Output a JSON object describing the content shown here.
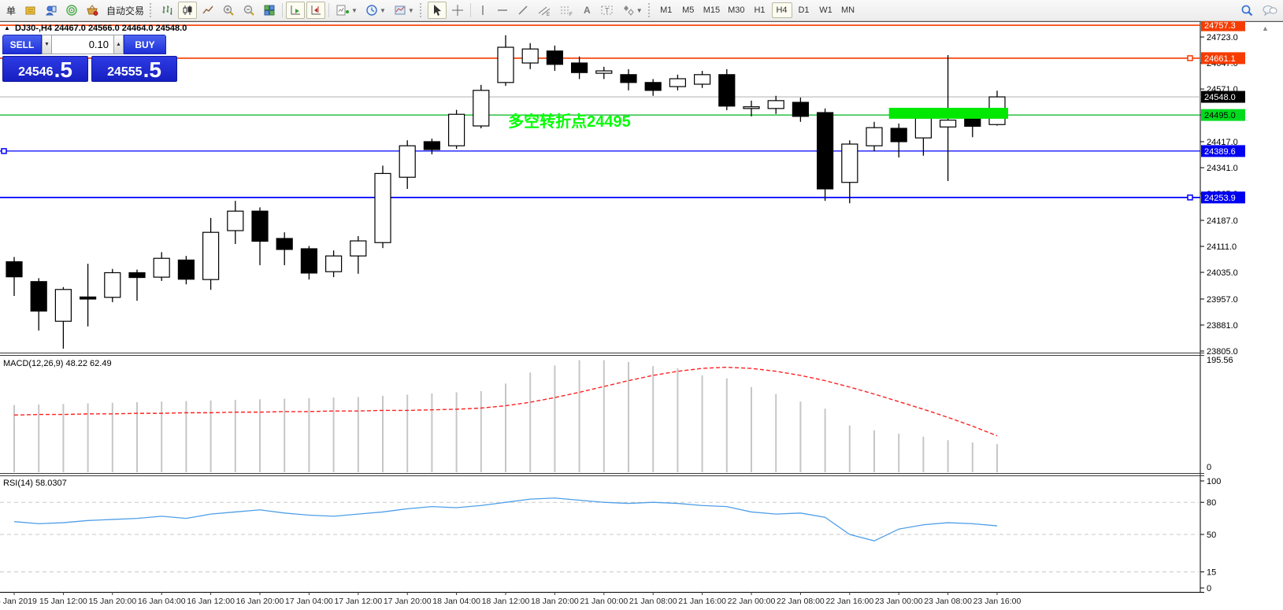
{
  "toolbar": {
    "order_label": "单",
    "autotrade_label": "自动交易",
    "timeframes": [
      "M1",
      "M5",
      "M15",
      "M30",
      "H1",
      "H4",
      "D1",
      "W1",
      "MN"
    ],
    "active_timeframe": "H4"
  },
  "trade_panel": {
    "sell_label": "SELL",
    "buy_label": "BUY",
    "volume": "0.10",
    "sell_price_main": "24546",
    "sell_price_big": ".5",
    "buy_price_main": "24555",
    "buy_price_big": ".5"
  },
  "chart_header": {
    "marker": "▲",
    "symbol": "DJ30-,H4",
    "ohlc": "24467.0 24566.0 24464.0 24548.0"
  },
  "indicator_labels": {
    "macd": "MACD(12,26,9) 48.22 62.49",
    "rsi": "RSI(14) 58.0307"
  },
  "chart_data": {
    "type": "candlestick",
    "symbol": "DJ30-",
    "timeframe": "H4",
    "columns": [
      "time",
      "open",
      "high",
      "low",
      "close"
    ],
    "candles": [
      [
        "15 Jan 04:00",
        24066,
        24080,
        23966,
        24022
      ],
      [
        "15 Jan 08:00",
        24008,
        24018,
        23865,
        23922
      ],
      [
        "15 Jan 12:00",
        23892,
        23992,
        23812,
        23985
      ],
      [
        "15 Jan 16:00",
        23963,
        24060,
        23877,
        23957
      ],
      [
        "15 Jan 20:00",
        23962,
        24045,
        23948,
        24034
      ],
      [
        "16 Jan 00:00",
        24034,
        24043,
        23952,
        24020
      ],
      [
        "16 Jan 04:00",
        24021,
        24094,
        24010,
        24076
      ],
      [
        "16 Jan 08:00",
        24071,
        24083,
        24000,
        24015
      ],
      [
        "16 Jan 12:00",
        24014,
        24194,
        23984,
        24152
      ],
      [
        "16 Jan 16:00",
        24157,
        24244,
        24118,
        24214
      ],
      [
        "16 Jan 20:00",
        24214,
        24225,
        24056,
        24126
      ],
      [
        "17 Jan 00:00",
        24134,
        24152,
        24056,
        24102
      ],
      [
        "17 Jan 04:00",
        24104,
        24112,
        24014,
        24033
      ],
      [
        "17 Jan 08:00",
        24037,
        24099,
        24021,
        24083
      ],
      [
        "17 Jan 12:00",
        24083,
        24141,
        24031,
        24127
      ],
      [
        "17 Jan 16:00",
        24122,
        24347,
        24106,
        24324
      ],
      [
        "17 Jan 20:00",
        24313,
        24421,
        24279,
        24405
      ],
      [
        "18 Jan 00:00",
        24417,
        24426,
        24380,
        24394
      ],
      [
        "18 Jan 04:00",
        24405,
        24510,
        24396,
        24497
      ],
      [
        "18 Jan 08:00",
        24463,
        24583,
        24456,
        24567
      ],
      [
        "18 Jan 12:00",
        24590,
        24728,
        24580,
        24693
      ],
      [
        "18 Jan 16:00",
        24647,
        24705,
        24629,
        24688
      ],
      [
        "18 Jan 20:00",
        24682,
        24698,
        24624,
        24643
      ],
      [
        "19 Jan 00:00",
        24647,
        24666,
        24600,
        24619
      ],
      [
        "21 Jan 00:00",
        24617,
        24636,
        24600,
        24624
      ],
      [
        "21 Jan 04:00",
        24613,
        24629,
        24567,
        24590
      ],
      [
        "21 Jan 08:00",
        24590,
        24600,
        24551,
        24567
      ],
      [
        "21 Jan 12:00",
        24578,
        24613,
        24567,
        24601
      ],
      [
        "21 Jan 16:00",
        24585,
        24624,
        24574,
        24613
      ],
      [
        "21 Jan 20:00",
        24613,
        24629,
        24509,
        24521
      ],
      [
        "22 Jan 00:00",
        24514,
        24537,
        24491,
        24519
      ],
      [
        "22 Jan 04:00",
        24514,
        24551,
        24498,
        24537
      ],
      [
        "22 Jan 08:00",
        24532,
        24546,
        24475,
        24491
      ],
      [
        "22 Jan 12:00",
        24502,
        24514,
        24244,
        24279
      ],
      [
        "22 Jan 16:00",
        24298,
        24421,
        24237,
        24410
      ],
      [
        "22 Jan 20:00",
        24405,
        24475,
        24389,
        24458
      ],
      [
        "23 Jan 00:00",
        24456,
        24470,
        24371,
        24417
      ],
      [
        "23 Jan 04:00",
        24428,
        24498,
        24376,
        24486
      ],
      [
        "23 Jan 08:00",
        24460,
        24670,
        24302,
        24480
      ],
      [
        "23 Jan 12:00",
        24490,
        24502,
        24430,
        24462
      ],
      [
        "23 Jan 16:00",
        24467,
        24566,
        24464,
        24548
      ]
    ],
    "price_ticks": [
      24723.0,
      24647.0,
      24571.0,
      24495.0,
      24417.0,
      24341.0,
      24265.0,
      24187.0,
      24111.0,
      24035.0,
      23957.0,
      23881.0,
      23805.0
    ],
    "hlines": [
      {
        "price": 24757.3,
        "label": "24757.3",
        "line_color": "#f63c00",
        "badge_bg": "#f63c00",
        "badge_fg": "#ffffff",
        "width": 1.6,
        "handle": "none"
      },
      {
        "price": 24661.1,
        "label": "24661.1",
        "line_color": "#f63c00",
        "badge_bg": "#f63c00",
        "badge_fg": "#ffffff",
        "width": 1.6,
        "handle": "right"
      },
      {
        "price": 24548.0,
        "label": "24548.0",
        "line_color": "#b9b9b9",
        "badge_bg": "#000000",
        "badge_fg": "#ffffff",
        "width": 1.2,
        "handle": "none"
      },
      {
        "price": 24495.0,
        "label": "24495.0",
        "line_color": "#00b41e",
        "badge_bg": "#00db1e",
        "badge_fg": "#000000",
        "width": 1.2,
        "handle": "none"
      },
      {
        "price": 24389.6,
        "label": "24389.6",
        "line_color": "#0000ff",
        "badge_bg": "#0000f0",
        "badge_fg": "#ffffff",
        "width": 1.2,
        "handle": "left"
      },
      {
        "price": 24253.9,
        "label": "24253.9",
        "line_color": "#0000ff",
        "badge_bg": "#0000f0",
        "badge_fg": "#ffffff",
        "width": 1.8,
        "handle": "right"
      }
    ],
    "highlight_box": {
      "start_index": 35.6,
      "end_index": 40.45,
      "price_top": 24516,
      "price_bottom": 24484,
      "color": "#00e800"
    },
    "annotation": {
      "text": "多空转折点24495",
      "index": 20.1,
      "price": 24461,
      "color": "#00ff00",
      "font_size": 20
    },
    "macd": {
      "type": "histogram+line",
      "params": "12,26,9",
      "current_main": 48.22,
      "current_signal": 62.49,
      "scale_max": 195.56,
      "scale_min": 0,
      "hist_color": "#c6c6c6",
      "signal_color": "#ff2020",
      "histogram": [
        115,
        116,
        117,
        118,
        119,
        120,
        121,
        122,
        123,
        124,
        125,
        126,
        127,
        128,
        129,
        131,
        133,
        135,
        137,
        139,
        152,
        171,
        183,
        192,
        192,
        189,
        182,
        178,
        166,
        161,
        146,
        134,
        121,
        109,
        80,
        72,
        66,
        61,
        55,
        51,
        48.22
      ],
      "signal": [
        98,
        99,
        99,
        100,
        100,
        101,
        101,
        102,
        102,
        103,
        103,
        104,
        104,
        105,
        105,
        106,
        106,
        107,
        108,
        110,
        114,
        120,
        128,
        137,
        147,
        157,
        166,
        173,
        178,
        180,
        178,
        173,
        166,
        157,
        146,
        134,
        121,
        108,
        94,
        79,
        62.49
      ]
    },
    "rsi": {
      "type": "line",
      "period": 14,
      "current": 58.0307,
      "color": "#4f9fe8",
      "levels": [
        80,
        50,
        15
      ],
      "axis_labels": [
        100,
        80,
        50,
        15,
        0
      ],
      "values": [
        62,
        60,
        61,
        63,
        64,
        65,
        67,
        65,
        69,
        71,
        73,
        70,
        68,
        67,
        69,
        71,
        74,
        76,
        75,
        77,
        80,
        83,
        84,
        82,
        80,
        79,
        80,
        79,
        77,
        76,
        71,
        69,
        70,
        66,
        50,
        44,
        55,
        59,
        61,
        60,
        58.03
      ]
    },
    "time_labels": [
      "15 Jan 2019",
      "15 Jan 12:00",
      "15 Jan 20:00",
      "16 Jan 04:00",
      "16 Jan 12:00",
      "16 Jan 20:00",
      "17 Jan 04:00",
      "17 Jan 12:00",
      "17 Jan 20:00",
      "18 Jan 04:00",
      "18 Jan 12:00",
      "18 Jan 20:00",
      "21 Jan 00:00",
      "21 Jan 08:00",
      "21 Jan 16:00",
      "22 Jan 00:00",
      "22 Jan 08:00",
      "22 Jan 16:00",
      "23 Jan 00:00",
      "23 Jan 08:00",
      "23 Jan 16:00"
    ]
  }
}
